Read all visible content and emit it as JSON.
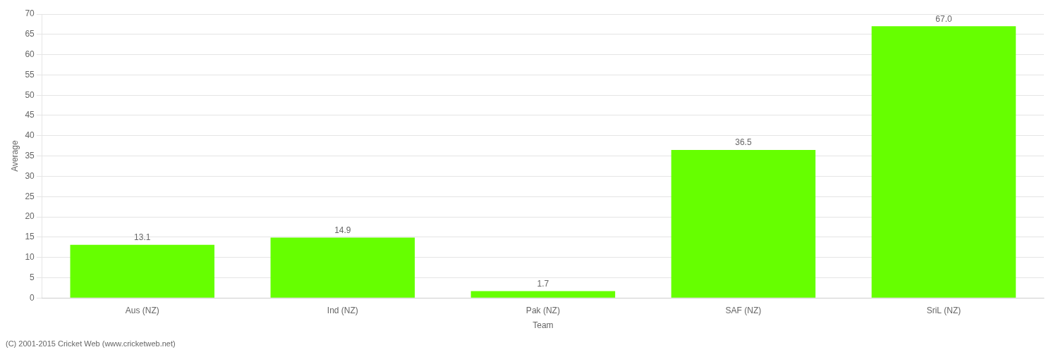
{
  "chart_data": {
    "type": "bar",
    "xlabel": "Team",
    "ylabel": "Average",
    "categories": [
      "Aus (NZ)",
      "Ind (NZ)",
      "Pak (NZ)",
      "SAF (NZ)",
      "SriL (NZ)"
    ],
    "values": [
      13.1,
      14.9,
      1.7,
      36.5,
      67.0
    ],
    "value_labels": [
      "13.1",
      "14.9",
      "1.7",
      "36.5",
      "67.0"
    ],
    "data_labels": true,
    "color": "#66ff00",
    "ylim": [
      0,
      70
    ],
    "yticks": [
      0,
      5,
      10,
      15,
      20,
      25,
      30,
      35,
      40,
      45,
      50,
      55,
      60,
      65,
      70
    ],
    "grid": true,
    "annotations": [
      "(C) 2001-2015 Cricket Web (www.cricketweb.net)"
    ]
  }
}
